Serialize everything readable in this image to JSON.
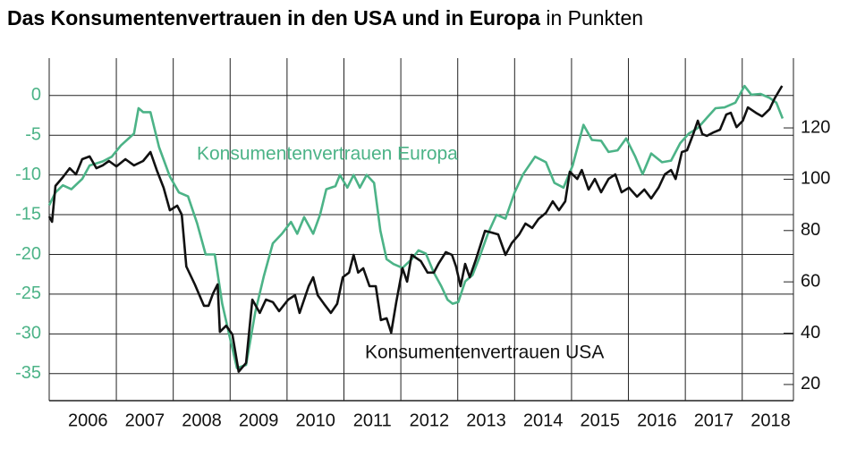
{
  "chart_data": {
    "type": "line",
    "title": "Das Konsumentenvertrauen in den USA und in Europa",
    "subtitle": "in Punkten",
    "xlim": [
      2005.82,
      2018.9
    ],
    "xticks": [
      {
        "value": 2006.5,
        "label": "2006"
      },
      {
        "value": 2007.5,
        "label": "2007"
      },
      {
        "value": 2008.5,
        "label": "2008"
      },
      {
        "value": 2009.5,
        "label": "2009"
      },
      {
        "value": 2010.5,
        "label": "2010"
      },
      {
        "value": 2011.5,
        "label": "2011"
      },
      {
        "value": 2012.5,
        "label": "2012"
      },
      {
        "value": 2013.5,
        "label": "2013"
      },
      {
        "value": 2014.5,
        "label": "2014"
      },
      {
        "value": 2015.5,
        "label": "2015"
      },
      {
        "value": 2016.5,
        "label": "2016"
      },
      {
        "value": 2017.5,
        "label": "2017"
      },
      {
        "value": 2018.5,
        "label": "2018"
      }
    ],
    "ylim": [
      -38.4,
      4.7
    ],
    "yticks": [
      0,
      -5,
      -10,
      -15,
      -20,
      -25,
      -30,
      -35
    ],
    "y2lim": [
      13.7,
      147.2
    ],
    "y2ticks": [
      20,
      40,
      60,
      80,
      100,
      120
    ],
    "grid": true,
    "series": [
      {
        "name": "Konsumentenvertrauen Europa",
        "color": "#4cb387",
        "x": [
          2005.82,
          2005.93,
          2006.06,
          2006.21,
          2006.4,
          2006.53,
          2006.76,
          2006.92,
          2007.08,
          2007.31,
          2007.39,
          2007.47,
          2007.6,
          2007.75,
          2007.94,
          2008.1,
          2008.26,
          2008.42,
          2008.57,
          2008.73,
          2008.86,
          2009.01,
          2009.12,
          2009.28,
          2009.44,
          2009.59,
          2009.75,
          2009.91,
          2010.07,
          2010.18,
          2010.3,
          2010.46,
          2010.58,
          2010.69,
          2010.85,
          2010.93,
          2011.06,
          2011.17,
          2011.28,
          2011.4,
          2011.53,
          2011.64,
          2011.75,
          2011.87,
          2012.03,
          2012.19,
          2012.31,
          2012.44,
          2012.58,
          2012.71,
          2012.82,
          2012.91,
          2013.01,
          2013.13,
          2013.26,
          2013.37,
          2013.53,
          2013.68,
          2013.84,
          2014.0,
          2014.15,
          2014.36,
          2014.55,
          2014.7,
          2014.86,
          2015.02,
          2015.21,
          2015.36,
          2015.52,
          2015.65,
          2015.81,
          2015.96,
          2016.12,
          2016.25,
          2016.4,
          2016.59,
          2016.75,
          2016.91,
          2017.06,
          2017.22,
          2017.38,
          2017.53,
          2017.69,
          2017.88,
          2018.04,
          2018.16,
          2018.32,
          2018.48,
          2018.6,
          2018.71
        ],
        "values": [
          -13.8,
          -12.2,
          -11.3,
          -11.8,
          -10.5,
          -8.8,
          -8.3,
          -7.7,
          -6.3,
          -4.8,
          -1.6,
          -2.1,
          -2.1,
          -6.5,
          -10.2,
          -12.2,
          -12.7,
          -16.1,
          -20.0,
          -20.0,
          -26.2,
          -30.9,
          -34.3,
          -33.9,
          -27.3,
          -22.8,
          -18.6,
          -17.4,
          -15.9,
          -17.4,
          -15.3,
          -17.4,
          -15.0,
          -11.8,
          -11.4,
          -10.0,
          -11.6,
          -10.0,
          -11.6,
          -10.0,
          -11.0,
          -17.0,
          -20.6,
          -21.2,
          -21.7,
          -20.6,
          -19.5,
          -19.9,
          -22.3,
          -24.0,
          -25.7,
          -26.2,
          -26.0,
          -23.4,
          -22.6,
          -20.6,
          -17.4,
          -15.0,
          -15.5,
          -12.2,
          -9.9,
          -7.7,
          -8.4,
          -11.0,
          -11.6,
          -8.8,
          -3.7,
          -5.6,
          -5.7,
          -7.1,
          -6.9,
          -5.4,
          -7.7,
          -9.9,
          -7.3,
          -8.4,
          -8.2,
          -6.0,
          -4.8,
          -4.1,
          -2.8,
          -1.6,
          -1.5,
          -0.9,
          1.2,
          0.1,
          0.2,
          -0.3,
          -0.9,
          -2.9
        ]
      },
      {
        "name": "Konsumentenvertrauen USA",
        "color": "#111111",
        "axis": "y2",
        "x": [
          2005.82,
          2005.87,
          2005.93,
          2006.06,
          2006.18,
          2006.29,
          2006.4,
          2006.53,
          2006.65,
          2006.76,
          2006.87,
          2007.0,
          2007.16,
          2007.31,
          2007.47,
          2007.6,
          2007.71,
          2007.83,
          2007.94,
          2008.07,
          2008.15,
          2008.23,
          2008.38,
          2008.54,
          2008.62,
          2008.7,
          2008.78,
          2008.82,
          2008.93,
          2009.04,
          2009.15,
          2009.28,
          2009.39,
          2009.52,
          2009.63,
          2009.75,
          2009.86,
          2010.02,
          2010.14,
          2010.22,
          2010.38,
          2010.46,
          2010.54,
          2010.65,
          2010.77,
          2010.88,
          2010.98,
          2011.09,
          2011.17,
          2011.25,
          2011.34,
          2011.45,
          2011.56,
          2011.65,
          2011.75,
          2011.83,
          2011.92,
          2012.03,
          2012.11,
          2012.19,
          2012.35,
          2012.47,
          2012.58,
          2012.66,
          2012.79,
          2012.9,
          2012.97,
          2013.05,
          2013.13,
          2013.21,
          2013.32,
          2013.48,
          2013.6,
          2013.71,
          2013.84,
          2013.95,
          2014.08,
          2014.19,
          2014.31,
          2014.42,
          2014.55,
          2014.67,
          2014.78,
          2014.89,
          2014.97,
          2015.1,
          2015.18,
          2015.3,
          2015.41,
          2015.52,
          2015.65,
          2015.77,
          2015.88,
          2016.01,
          2016.15,
          2016.28,
          2016.4,
          2016.53,
          2016.64,
          2016.75,
          2016.83,
          2016.94,
          2017.03,
          2017.14,
          2017.22,
          2017.3,
          2017.38,
          2017.5,
          2017.61,
          2017.72,
          2017.8,
          2017.9,
          2018.01,
          2018.1,
          2018.24,
          2018.35,
          2018.48,
          2018.57,
          2018.7
        ],
        "values": [
          85.5,
          83.4,
          97.4,
          100.8,
          104.3,
          101.9,
          107.8,
          108.9,
          104.3,
          105.4,
          107.1,
          105.0,
          107.8,
          105.4,
          107.1,
          110.6,
          103.6,
          96.7,
          87.9,
          89.7,
          86.2,
          66.0,
          59.0,
          50.7,
          50.7,
          55.5,
          59.0,
          40.5,
          42.9,
          39.5,
          25.0,
          28.4,
          53.1,
          47.9,
          53.1,
          52.1,
          48.6,
          53.1,
          54.8,
          47.9,
          58.3,
          61.8,
          54.8,
          51.4,
          47.9,
          51.4,
          61.8,
          63.6,
          70.5,
          63.6,
          65.3,
          58.3,
          58.3,
          45.1,
          45.8,
          40.2,
          52.1,
          65.3,
          60.1,
          70.5,
          68.1,
          63.6,
          63.6,
          67.0,
          71.6,
          70.5,
          66.0,
          58.3,
          67.0,
          61.8,
          68.8,
          79.9,
          79.2,
          78.5,
          70.5,
          75.1,
          78.5,
          82.7,
          81.0,
          84.5,
          86.9,
          91.4,
          87.9,
          91.4,
          102.9,
          100.1,
          103.6,
          96.0,
          100.1,
          94.9,
          100.1,
          101.9,
          94.9,
          96.7,
          93.2,
          96.0,
          92.5,
          96.7,
          101.9,
          103.6,
          100.1,
          110.6,
          111.3,
          117.6,
          122.8,
          117.6,
          116.9,
          118.3,
          119.3,
          125.2,
          125.9,
          120.3,
          122.8,
          128.0,
          125.9,
          124.5,
          127.3,
          131.5,
          136.4
        ]
      }
    ]
  }
}
